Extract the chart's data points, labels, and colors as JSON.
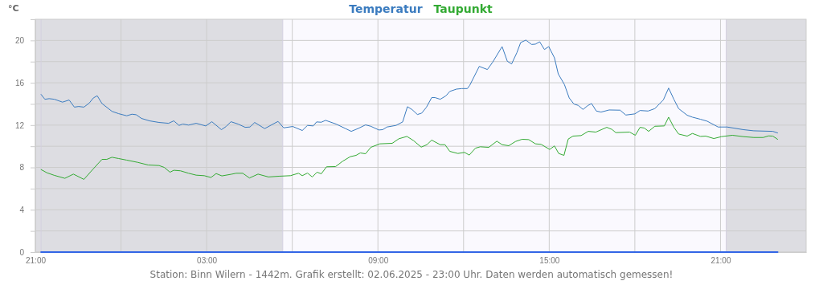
{
  "chart_data": {
    "type": "line",
    "ylabel": "°C",
    "legend": "top",
    "grid": true,
    "xlim": [
      "2025-06-01T21:00",
      "2025-06-03T00:00"
    ],
    "xticks": [
      {
        "value": "2025-06-01T21:00",
        "label": "21:00"
      },
      {
        "value": "2025-06-02T00:00",
        "label": null
      },
      {
        "value": "2025-06-02T03:00",
        "label": "03:00"
      },
      {
        "value": "2025-06-02T06:00",
        "label": null
      },
      {
        "value": "2025-06-02T09:00",
        "label": "09:00"
      },
      {
        "value": "2025-06-02T12:00",
        "label": null
      },
      {
        "value": "2025-06-02T15:00",
        "label": "15:00"
      },
      {
        "value": "2025-06-02T18:00",
        "label": null
      },
      {
        "value": "2025-06-02T21:00",
        "label": "21:00"
      }
    ],
    "ylim": [
      0,
      22
    ],
    "yticks": [
      0,
      {
        "value": 2,
        "label": null
      },
      4,
      {
        "value": 6,
        "label": null
      },
      8,
      {
        "value": 10,
        "label": null
      },
      12,
      {
        "value": 14,
        "label": null
      },
      16,
      {
        "value": 18,
        "label": null
      },
      20
    ],
    "bands": [
      {
        "axis": "x",
        "from": "2025-06-01T21:00",
        "to": "2025-06-02T05:40",
        "color": "#dddde2"
      },
      {
        "axis": "x",
        "from": "2025-06-02T21:12",
        "to": "2025-06-03T00:00",
        "color": "#dddde2"
      }
    ],
    "ref_lines": [
      {
        "axis": "x",
        "value": "2025-06-01T21:12",
        "color": "#d4d0e0"
      },
      {
        "axis": "x",
        "value": "2025-06-02T05:40",
        "color": "#d4d0e0"
      },
      {
        "axis": "x",
        "value": "2025-06-02T21:12",
        "color": "#d4d0e0"
      }
    ],
    "annotations": [
      "Station: Binn Wilern - 1442m. Grafik erstellt: 02.06.2025 - 23:00 Uhr. Daten werden automatisch gemessen!"
    ],
    "series": [
      {
        "name": "Temperatur",
        "color": "#3a7bbf",
        "x": [
          "2025-06-01T21:12",
          "2025-06-01T21:20",
          "2025-06-01T21:29",
          "2025-06-01T21:40",
          "2025-06-01T21:57",
          "2025-06-01T22:11",
          "2025-06-01T22:22",
          "2025-06-01T22:31",
          "2025-06-01T22:42",
          "2025-06-01T22:53",
          "2025-06-01T23:02",
          "2025-06-01T23:10",
          "2025-06-01T23:20",
          "2025-06-01T23:41",
          "2025-06-01T23:55",
          "2025-06-02T00:12",
          "2025-06-02T00:23",
          "2025-06-02T00:32",
          "2025-06-02T00:43",
          "2025-06-02T01:00",
          "2025-06-02T01:20",
          "2025-06-02T01:40",
          "2025-06-02T01:51",
          "2025-06-02T02:02",
          "2025-06-02T02:10",
          "2025-06-02T02:22",
          "2025-06-02T02:38",
          "2025-06-02T02:58",
          "2025-06-02T03:11",
          "2025-06-02T03:31",
          "2025-06-02T03:41",
          "2025-06-02T03:51",
          "2025-06-02T04:06",
          "2025-06-02T04:21",
          "2025-06-02T04:31",
          "2025-06-02T04:41",
          "2025-06-02T05:02",
          "2025-06-02T05:30",
          "2025-06-02T05:42",
          "2025-06-02T06:01",
          "2025-06-02T06:21",
          "2025-06-02T06:32",
          "2025-06-02T06:44",
          "2025-06-02T06:51",
          "2025-06-02T07:01",
          "2025-06-02T07:10",
          "2025-06-02T07:32",
          "2025-06-02T07:51",
          "2025-06-02T08:04",
          "2025-06-02T08:19",
          "2025-06-02T08:34",
          "2025-06-02T08:45",
          "2025-06-02T09:02",
          "2025-06-02T09:10",
          "2025-06-02T09:19",
          "2025-06-02T09:38",
          "2025-06-02T09:52",
          "2025-06-02T10:02",
          "2025-06-02T10:12",
          "2025-06-02T10:23",
          "2025-06-02T10:32",
          "2025-06-02T10:42",
          "2025-06-02T10:53",
          "2025-06-02T11:00",
          "2025-06-02T11:11",
          "2025-06-02T11:23",
          "2025-06-02T11:31",
          "2025-06-02T11:45",
          "2025-06-02T11:56",
          "2025-06-02T12:08",
          "2025-06-02T12:13",
          "2025-06-02T12:33",
          "2025-06-02T12:50",
          "2025-06-02T13:01",
          "2025-06-02T13:21",
          "2025-06-02T13:32",
          "2025-06-02T13:41",
          "2025-06-02T13:52",
          "2025-06-02T14:00",
          "2025-06-02T14:11",
          "2025-06-02T14:23",
          "2025-06-02T14:31",
          "2025-06-02T14:40",
          "2025-06-02T14:50",
          "2025-06-02T14:59",
          "2025-06-02T15:11",
          "2025-06-02T15:19",
          "2025-06-02T15:32",
          "2025-06-02T15:42",
          "2025-06-02T15:52",
          "2025-06-02T16:01",
          "2025-06-02T16:11",
          "2025-06-02T16:21",
          "2025-06-02T16:29",
          "2025-06-02T16:39",
          "2025-06-02T16:49",
          "2025-06-02T17:06",
          "2025-06-02T17:29",
          "2025-06-02T17:41",
          "2025-06-02T18:00",
          "2025-06-02T18:11",
          "2025-06-02T18:28",
          "2025-06-02T18:42",
          "2025-06-02T19:00",
          "2025-06-02T19:11",
          "2025-06-02T19:22",
          "2025-06-02T19:32",
          "2025-06-02T19:50",
          "2025-06-02T20:01",
          "2025-06-02T20:18",
          "2025-06-02T20:32",
          "2025-06-02T20:55",
          "2025-06-02T21:14",
          "2025-06-02T21:48",
          "2025-06-02T22:10",
          "2025-06-02T22:50",
          "2025-06-02T23:00"
        ],
        "values": [
          14.9,
          14.44,
          14.5,
          14.44,
          14.17,
          14.37,
          13.7,
          13.76,
          13.7,
          14.07,
          14.57,
          14.77,
          14.04,
          13.3,
          13.08,
          12.88,
          13.03,
          12.98,
          12.63,
          12.4,
          12.25,
          12.17,
          12.4,
          11.97,
          12.1,
          12,
          12.17,
          11.92,
          12.32,
          11.57,
          11.87,
          12.32,
          12.1,
          11.79,
          11.82,
          12.25,
          11.67,
          12.35,
          11.74,
          11.87,
          11.49,
          11.97,
          11.92,
          12.3,
          12.27,
          12.45,
          12.1,
          11.69,
          11.41,
          11.69,
          12.02,
          11.89,
          11.54,
          11.57,
          11.82,
          11.97,
          12.3,
          13.74,
          13.46,
          13,
          13.13,
          13.69,
          14.6,
          14.6,
          14.44,
          14.77,
          15.18,
          15.4,
          15.45,
          15.45,
          15.76,
          17.55,
          17.25,
          17.93,
          19.42,
          18.03,
          17.78,
          18.84,
          19.8,
          20.03,
          19.62,
          19.65,
          19.87,
          19.14,
          19.42,
          18.36,
          16.84,
          15.83,
          14.57,
          13.99,
          13.86,
          13.48,
          13.84,
          14.04,
          13.33,
          13.23,
          13.43,
          13.41,
          12.95,
          13.06,
          13.38,
          13.33,
          13.56,
          14.39,
          15.5,
          14.44,
          13.56,
          12.93,
          12.75,
          12.55,
          12.37,
          11.82,
          11.82,
          11.57,
          11.46,
          11.41,
          11.26
        ]
      },
      {
        "name": "Taupunkt",
        "color": "#33aa33",
        "x": [
          "2025-06-01T21:12",
          "2025-06-01T21:24",
          "2025-06-01T21:40",
          "2025-06-01T22:02",
          "2025-06-01T22:20",
          "2025-06-01T22:42",
          "2025-06-01T23:02",
          "2025-06-01T23:20",
          "2025-06-01T23:30",
          "2025-06-01T23:41",
          "2025-06-01T23:55",
          "2025-06-02T00:12",
          "2025-06-02T00:35",
          "2025-06-02T00:57",
          "2025-06-02T01:20",
          "2025-06-02T01:31",
          "2025-06-02T01:43",
          "2025-06-02T01:51",
          "2025-06-02T02:05",
          "2025-06-02T02:22",
          "2025-06-02T02:38",
          "2025-06-02T02:55",
          "2025-06-02T03:09",
          "2025-06-02T03:20",
          "2025-06-02T03:32",
          "2025-06-02T03:51",
          "2025-06-02T04:02",
          "2025-06-02T04:16",
          "2025-06-02T04:30",
          "2025-06-02T04:48",
          "2025-06-02T05:10",
          "2025-06-02T05:32",
          "2025-06-02T05:56",
          "2025-06-02T06:13",
          "2025-06-02T06:21",
          "2025-06-02T06:32",
          "2025-06-02T06:42",
          "2025-06-02T06:52",
          "2025-06-02T07:01",
          "2025-06-02T07:12",
          "2025-06-02T07:31",
          "2025-06-02T07:46",
          "2025-06-02T08:02",
          "2025-06-02T08:14",
          "2025-06-02T08:23",
          "2025-06-02T08:34",
          "2025-06-02T08:45",
          "2025-06-02T09:04",
          "2025-06-02T09:30",
          "2025-06-02T09:44",
          "2025-06-02T10:01",
          "2025-06-02T10:15",
          "2025-06-02T10:31",
          "2025-06-02T10:43",
          "2025-06-02T10:53",
          "2025-06-02T11:11",
          "2025-06-02T11:21",
          "2025-06-02T11:31",
          "2025-06-02T11:48",
          "2025-06-02T12:02",
          "2025-06-02T12:12",
          "2025-06-02T12:25",
          "2025-06-02T12:35",
          "2025-06-02T12:53",
          "2025-06-02T13:10",
          "2025-06-02T13:21",
          "2025-06-02T13:35",
          "2025-06-02T13:49",
          "2025-06-02T14:03",
          "2025-06-02T14:17",
          "2025-06-02T14:31",
          "2025-06-02T14:43",
          "2025-06-02T15:01",
          "2025-06-02T15:11",
          "2025-06-02T15:20",
          "2025-06-02T15:31",
          "2025-06-02T15:40",
          "2025-06-02T15:50",
          "2025-06-02T16:07",
          "2025-06-02T16:22",
          "2025-06-02T16:38",
          "2025-06-02T17:01",
          "2025-06-02T17:12",
          "2025-06-02T17:20",
          "2025-06-02T17:49",
          "2025-06-02T18:01",
          "2025-06-02T18:11",
          "2025-06-02T18:20",
          "2025-06-02T18:29",
          "2025-06-02T18:42",
          "2025-06-02T19:02",
          "2025-06-02T19:11",
          "2025-06-02T19:22",
          "2025-06-02T19:32",
          "2025-06-02T19:50",
          "2025-06-02T20:01",
          "2025-06-02T20:18",
          "2025-06-02T20:29",
          "2025-06-02T20:46",
          "2025-06-02T21:02",
          "2025-06-02T21:25",
          "2025-06-02T21:48",
          "2025-06-02T22:10",
          "2025-06-02T22:30",
          "2025-06-02T22:41",
          "2025-06-02T22:50",
          "2025-06-02T23:00"
        ],
        "values": [
          7.8,
          7.5,
          7.25,
          6.97,
          7.37,
          6.87,
          7.88,
          8.76,
          8.76,
          8.96,
          8.84,
          8.69,
          8.48,
          8.23,
          8.18,
          8,
          7.55,
          7.73,
          7.68,
          7.45,
          7.27,
          7.22,
          7.05,
          7.42,
          7.2,
          7.35,
          7.45,
          7.45,
          7,
          7.37,
          7.1,
          7.17,
          7.22,
          7.45,
          7.22,
          7.47,
          7.1,
          7.55,
          7.4,
          8.06,
          8.08,
          8.59,
          9.02,
          9.14,
          9.37,
          9.29,
          9.9,
          10.23,
          10.28,
          10.71,
          10.93,
          10.53,
          9.92,
          10.15,
          10.58,
          10.15,
          10.15,
          9.52,
          9.32,
          9.42,
          9.17,
          9.82,
          9.95,
          9.9,
          10.48,
          10.15,
          10.05,
          10.45,
          10.66,
          10.63,
          10.23,
          10.18,
          9.7,
          10.03,
          9.32,
          9.14,
          10.68,
          10.96,
          11.01,
          11.41,
          11.34,
          11.79,
          11.59,
          11.29,
          11.34,
          11.04,
          11.79,
          11.72,
          11.41,
          11.89,
          11.92,
          12.75,
          11.79,
          11.16,
          10.96,
          11.21,
          10.93,
          10.96,
          10.73,
          10.91,
          11.04,
          10.91,
          10.83,
          10.83,
          10.98,
          10.96,
          10.66
        ]
      },
      {
        "color": "#3366e6",
        "x": [
          "2025-06-01T21:12",
          "2025-06-02T23:00"
        ],
        "values": [
          0,
          0
        ]
      }
    ]
  }
}
